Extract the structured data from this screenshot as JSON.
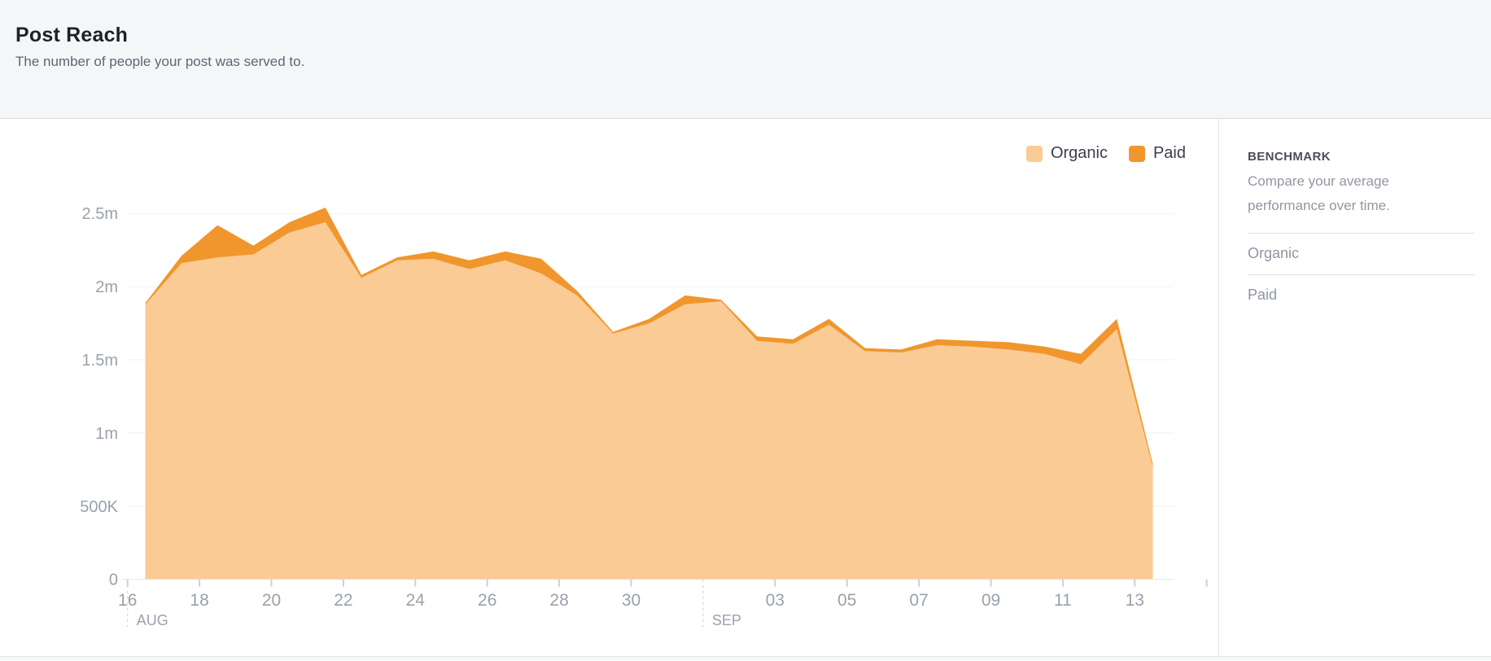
{
  "header": {
    "title": "Post Reach",
    "subtitle": "The number of people your post was served to."
  },
  "benchmark": {
    "heading": "BENCHMARK",
    "description": "Compare your average performance over time.",
    "items": [
      {
        "label": "Organic"
      },
      {
        "label": "Paid"
      }
    ]
  },
  "chart_data": {
    "type": "area",
    "stacked": true,
    "title": "Post Reach",
    "value_unit": "millions of people",
    "ylim": [
      0,
      2.75
    ],
    "grid": "horizontal",
    "legend_position": "top-right",
    "categories": [
      "Aug 16",
      "Aug 17",
      "Aug 18",
      "Aug 19",
      "Aug 20",
      "Aug 21",
      "Aug 22",
      "Aug 23",
      "Aug 24",
      "Aug 25",
      "Aug 26",
      "Aug 27",
      "Aug 28",
      "Aug 29",
      "Aug 30",
      "Aug 31",
      "Sep 1",
      "Sep 2",
      "Sep 3",
      "Sep 4",
      "Sep 5",
      "Sep 6",
      "Sep 7",
      "Sep 8",
      "Sep 9",
      "Sep 10",
      "Sep 11",
      "Sep 12",
      "Sep 13"
    ],
    "series": [
      {
        "name": "Organic",
        "color": "#FACB94",
        "values": [
          1.88,
          2.16,
          2.2,
          2.22,
          2.37,
          2.44,
          2.06,
          2.18,
          2.19,
          2.12,
          2.18,
          2.09,
          1.94,
          1.68,
          1.75,
          1.88,
          1.9,
          1.63,
          1.61,
          1.74,
          1.56,
          1.55,
          1.6,
          1.59,
          1.57,
          1.54,
          1.47,
          1.71,
          0.77
        ]
      },
      {
        "name": "Paid",
        "color": "#F0962D",
        "values": [
          0.01,
          0.05,
          0.22,
          0.06,
          0.07,
          0.1,
          0.02,
          0.02,
          0.05,
          0.06,
          0.06,
          0.1,
          0.03,
          0.01,
          0.03,
          0.06,
          0.01,
          0.03,
          0.03,
          0.04,
          0.02,
          0.02,
          0.04,
          0.04,
          0.05,
          0.05,
          0.07,
          0.07,
          0.02
        ]
      }
    ],
    "y_ticks": [
      {
        "value": 0,
        "label": "0"
      },
      {
        "value": 0.5,
        "label": "500K"
      },
      {
        "value": 1,
        "label": "1m"
      },
      {
        "value": 1.5,
        "label": "1.5m"
      },
      {
        "value": 2,
        "label": "2m"
      },
      {
        "value": 2.5,
        "label": "2.5m"
      }
    ],
    "x_ticks": [
      {
        "label": "16",
        "day": 0
      },
      {
        "label": "18",
        "day": 2
      },
      {
        "label": "20",
        "day": 4
      },
      {
        "label": "22",
        "day": 6
      },
      {
        "label": "24",
        "day": 8
      },
      {
        "label": "26",
        "day": 10
      },
      {
        "label": "28",
        "day": 12
      },
      {
        "label": "30",
        "day": 14
      },
      {
        "label": "03",
        "day": 18
      },
      {
        "label": "05",
        "day": 20
      },
      {
        "label": "07",
        "day": 22
      },
      {
        "label": "09",
        "day": 24
      },
      {
        "label": "11",
        "day": 26
      },
      {
        "label": "13",
        "day": 28
      }
    ],
    "extra_ticks": [
      30
    ],
    "months": [
      {
        "label": "AUG",
        "day": 0
      },
      {
        "label": "SEP",
        "day": 16
      }
    ]
  }
}
